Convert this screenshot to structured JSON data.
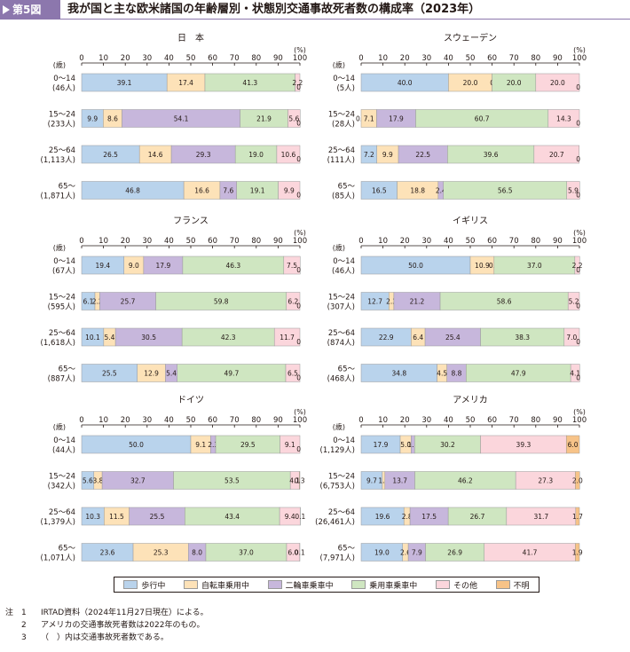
{
  "header": {
    "figure_no": "第5図",
    "title": "我が国と主な欧米諸国の年齢層別・状態別交通事故死者数の構成率（2023年）"
  },
  "legend": [
    {
      "label": "歩行中",
      "color": "#b9d3ec"
    },
    {
      "label": "自転車乗用中",
      "color": "#fde2b8"
    },
    {
      "label": "二輪車乗車中",
      "color": "#c7b7dc"
    },
    {
      "label": "乗用車乗車中",
      "color": "#cfe6c1"
    },
    {
      "label": "その他",
      "color": "#fbd6dc"
    },
    {
      "label": "不明",
      "color": "#f7c388"
    }
  ],
  "notes": {
    "prefix": "注",
    "items": [
      {
        "num": "1",
        "text": "IRTAD資料（2024年11月27日現在）による。"
      },
      {
        "num": "2",
        "text": "アメリカの交通事故死者数は2022年のもの。"
      },
      {
        "num": "3",
        "text": "（　）内は交通事故死者数である。"
      }
    ]
  },
  "chart_data": [
    {
      "type": "bar",
      "stacked": "horizontal-100",
      "title": "日　本",
      "xlabel": "(%)",
      "ylabel": "(歳)",
      "xlim": [
        0,
        100
      ],
      "x_ticks": [
        "0",
        "10",
        "20",
        "30",
        "40",
        "50",
        "60",
        "70",
        "80",
        "90",
        "100"
      ],
      "categories": [
        "0～14\n(46人)",
        "15～24\n(233人)",
        "25～64\n(1,113人)",
        "65～\n(1,871人)"
      ],
      "series": [
        {
          "name": "歩行中",
          "values": [
            39.1,
            9.9,
            26.5,
            46.8
          ],
          "labels": [
            "39.1",
            "9.9",
            "26.5",
            "46.8"
          ]
        },
        {
          "name": "自転車乗用中",
          "values": [
            17.4,
            8.6,
            14.6,
            16.6
          ],
          "labels": [
            "17.4",
            "8.6",
            "14.6",
            "16.6"
          ]
        },
        {
          "name": "二輪車乗車中",
          "values": [
            0,
            54.1,
            29.3,
            7.6
          ],
          "labels": [
            "",
            "54.1",
            "29.3",
            "7.6"
          ]
        },
        {
          "name": "乗用車乗車中",
          "values": [
            41.3,
            21.9,
            19.0,
            19.1
          ],
          "labels": [
            "41.3",
            "21.9",
            "19.0",
            "19.1"
          ]
        },
        {
          "name": "その他",
          "values": [
            2.2,
            5.6,
            10.6,
            9.9
          ],
          "labels": [
            "2.2",
            "5.6",
            "10.6",
            "9.9"
          ]
        },
        {
          "name": "不明",
          "values": [
            0,
            0,
            0,
            0
          ],
          "labels": [
            "0",
            "0",
            "0",
            "0"
          ]
        }
      ]
    },
    {
      "type": "bar",
      "stacked": "horizontal-100",
      "title": "スウェーデン",
      "xlabel": "(%)",
      "ylabel": "(歳)",
      "xlim": [
        0,
        100
      ],
      "x_ticks": [
        "0",
        "10",
        "20",
        "30",
        "40",
        "50",
        "60",
        "70",
        "80",
        "90",
        "100"
      ],
      "categories": [
        "0～14\n(5人)",
        "15～24\n(28人)",
        "25～64\n(111人)",
        "65～\n(85人)"
      ],
      "series": [
        {
          "name": "歩行中",
          "values": [
            40.0,
            0.0,
            7.2,
            16.5
          ],
          "labels": [
            "40.0",
            "0.0",
            "7.2",
            "16.5"
          ]
        },
        {
          "name": "自転車乗用中",
          "values": [
            20.0,
            7.1,
            9.9,
            18.8
          ],
          "labels": [
            "20.0",
            "7.1",
            "9.9",
            "18.8"
          ]
        },
        {
          "name": "二輪車乗車中",
          "values": [
            0,
            17.9,
            22.5,
            2.4
          ],
          "labels": [
            "0",
            "17.9",
            "22.5",
            "2.4"
          ]
        },
        {
          "name": "乗用車乗車中",
          "values": [
            20.0,
            60.7,
            39.6,
            56.5
          ],
          "labels": [
            "20.0",
            "60.7",
            "39.6",
            "56.5"
          ]
        },
        {
          "name": "その他",
          "values": [
            20.0,
            14.3,
            20.7,
            5.9
          ],
          "labels": [
            "20.0",
            "14.3",
            "20.7",
            "5.9"
          ]
        },
        {
          "name": "不明",
          "values": [
            0,
            0,
            0,
            0
          ],
          "labels": [
            "0",
            "0",
            "0",
            "0"
          ]
        }
      ]
    },
    {
      "type": "bar",
      "stacked": "horizontal-100",
      "title": "フランス",
      "xlabel": "(%)",
      "ylabel": "(歳)",
      "xlim": [
        0,
        100
      ],
      "x_ticks": [
        "0",
        "10",
        "20",
        "30",
        "40",
        "50",
        "60",
        "70",
        "80",
        "90",
        "100"
      ],
      "categories": [
        "0～14\n(67人)",
        "15～24\n(595人)",
        "25～64\n(1,618人)",
        "65～\n(887人)"
      ],
      "series": [
        {
          "name": "歩行中",
          "values": [
            19.4,
            6.1,
            10.1,
            25.5
          ],
          "labels": [
            "19.4",
            "6.1",
            "10.1",
            "25.5"
          ]
        },
        {
          "name": "自転車乗用中",
          "values": [
            9.0,
            2.2,
            5.4,
            12.9
          ],
          "labels": [
            "9.0",
            "2.2",
            "5.4",
            "12.9"
          ]
        },
        {
          "name": "二輪車乗車中",
          "values": [
            17.9,
            25.7,
            30.5,
            5.4
          ],
          "labels": [
            "17.9",
            "25.7",
            "30.5",
            "5.4"
          ]
        },
        {
          "name": "乗用車乗車中",
          "values": [
            46.3,
            59.8,
            42.3,
            49.7
          ],
          "labels": [
            "46.3",
            "59.8",
            "42.3",
            "49.7"
          ]
        },
        {
          "name": "その他",
          "values": [
            7.5,
            6.2,
            11.7,
            6.5
          ],
          "labels": [
            "7.5",
            "6.2",
            "11.7",
            "6.5"
          ]
        },
        {
          "name": "不明",
          "values": [
            0,
            0,
            0,
            0
          ],
          "labels": [
            "0",
            "0",
            "0",
            "0"
          ]
        }
      ]
    },
    {
      "type": "bar",
      "stacked": "horizontal-100",
      "title": "イギリス",
      "xlabel": "(%)",
      "ylabel": "(歳)",
      "xlim": [
        0,
        100
      ],
      "x_ticks": [
        "0",
        "10",
        "20",
        "30",
        "40",
        "50",
        "60",
        "70",
        "80",
        "90",
        "100"
      ],
      "categories": [
        "0～14\n(46人)",
        "15～24\n(307人)",
        "25～64\n(874人)",
        "65～\n(468人)"
      ],
      "series": [
        {
          "name": "歩行中",
          "values": [
            50.0,
            12.7,
            22.9,
            34.8
          ],
          "labels": [
            "50.0",
            "12.7",
            "22.9",
            "34.8"
          ]
        },
        {
          "name": "自転車乗用中",
          "values": [
            10.9,
            2.3,
            6.4,
            4.5
          ],
          "labels": [
            "10.9",
            "2.3",
            "6.4",
            "4.5"
          ]
        },
        {
          "name": "二輪車乗車中",
          "values": [
            0.0,
            21.2,
            25.4,
            8.8
          ],
          "labels": [
            "0.0",
            "21.2",
            "25.4",
            "8.8"
          ]
        },
        {
          "name": "乗用車乗車中",
          "values": [
            37.0,
            58.6,
            38.3,
            47.9
          ],
          "labels": [
            "37.0",
            "58.6",
            "38.3",
            "47.9"
          ]
        },
        {
          "name": "その他",
          "values": [
            2.2,
            5.2,
            7.0,
            4.1
          ],
          "labels": [
            "2.2",
            "5.2",
            "7.0",
            "4.1"
          ]
        },
        {
          "name": "不明",
          "values": [
            0,
            0,
            0,
            0
          ],
          "labels": [
            "0",
            "0",
            "0",
            "0"
          ]
        }
      ]
    },
    {
      "type": "bar",
      "stacked": "horizontal-100",
      "title": "ドイツ",
      "xlabel": "(%)",
      "ylabel": "(歳)",
      "xlim": [
        0,
        100
      ],
      "x_ticks": [
        "0",
        "10",
        "20",
        "30",
        "40",
        "50",
        "60",
        "70",
        "80",
        "90",
        "100"
      ],
      "categories": [
        "0～14\n(44人)",
        "15～24\n(342人)",
        "25～64\n(1,379人)",
        "65～\n(1,071人)"
      ],
      "series": [
        {
          "name": "歩行中",
          "values": [
            50.0,
            5.6,
            10.3,
            23.6
          ],
          "labels": [
            "50.0",
            "5.6",
            "10.3",
            "23.6"
          ]
        },
        {
          "name": "自転車乗用中",
          "values": [
            9.1,
            3.8,
            11.5,
            25.3
          ],
          "labels": [
            "9.1",
            "3.8",
            "11.5",
            "25.3"
          ]
        },
        {
          "name": "二輪車乗車中",
          "values": [
            2.3,
            32.7,
            25.5,
            8.0
          ],
          "labels": [
            "2.3",
            "32.7",
            "25.5",
            "8.0"
          ]
        },
        {
          "name": "乗用車乗車中",
          "values": [
            29.5,
            53.5,
            43.4,
            37.0
          ],
          "labels": [
            "29.5",
            "53.5",
            "43.4",
            "37.0"
          ]
        },
        {
          "name": "その他",
          "values": [
            9.1,
            4.1,
            9.4,
            6.0
          ],
          "labels": [
            "9.1",
            "4.1",
            "9.4",
            "6.0"
          ]
        },
        {
          "name": "不明",
          "values": [
            0,
            0.3,
            0.1,
            0.1
          ],
          "labels": [
            "0",
            "0.3",
            "0.1",
            "0.1"
          ]
        }
      ]
    },
    {
      "type": "bar",
      "stacked": "horizontal-100",
      "title": "アメリカ",
      "xlabel": "(%)",
      "ylabel": "(歳)",
      "xlim": [
        0,
        100
      ],
      "x_ticks": [
        "0",
        "10",
        "20",
        "30",
        "40",
        "50",
        "60",
        "70",
        "80",
        "90",
        "100"
      ],
      "categories": [
        "0～14\n(1,129人)",
        "15～24\n(6,753人)",
        "25～64\n(26,461人)",
        "65～\n(7,971人)"
      ],
      "series": [
        {
          "name": "歩行中",
          "values": [
            17.9,
            9.7,
            19.6,
            19.0
          ],
          "labels": [
            "17.9",
            "9.7",
            "19.6",
            "19.0"
          ]
        },
        {
          "name": "自転車乗用中",
          "values": [
            5.0,
            1.2,
            2.8,
            2.6
          ],
          "labels": [
            "5.0",
            "1.2",
            "2.8",
            "2.6"
          ]
        },
        {
          "name": "二輪車乗車中",
          "values": [
            1.6,
            13.7,
            17.5,
            7.9
          ],
          "labels": [
            "1.6",
            "13.7",
            "17.5",
            "7.9"
          ]
        },
        {
          "name": "乗用車乗車中",
          "values": [
            30.2,
            46.2,
            26.7,
            26.9
          ],
          "labels": [
            "30.2",
            "46.2",
            "26.7",
            "26.9"
          ]
        },
        {
          "name": "その他",
          "values": [
            39.3,
            27.3,
            31.7,
            41.7
          ],
          "labels": [
            "39.3",
            "27.3",
            "31.7",
            "41.7"
          ]
        },
        {
          "name": "不明",
          "values": [
            6.0,
            2.0,
            1.7,
            1.9
          ],
          "labels": [
            "6.0",
            "2.0",
            "1.7",
            "1.9"
          ]
        }
      ]
    }
  ]
}
